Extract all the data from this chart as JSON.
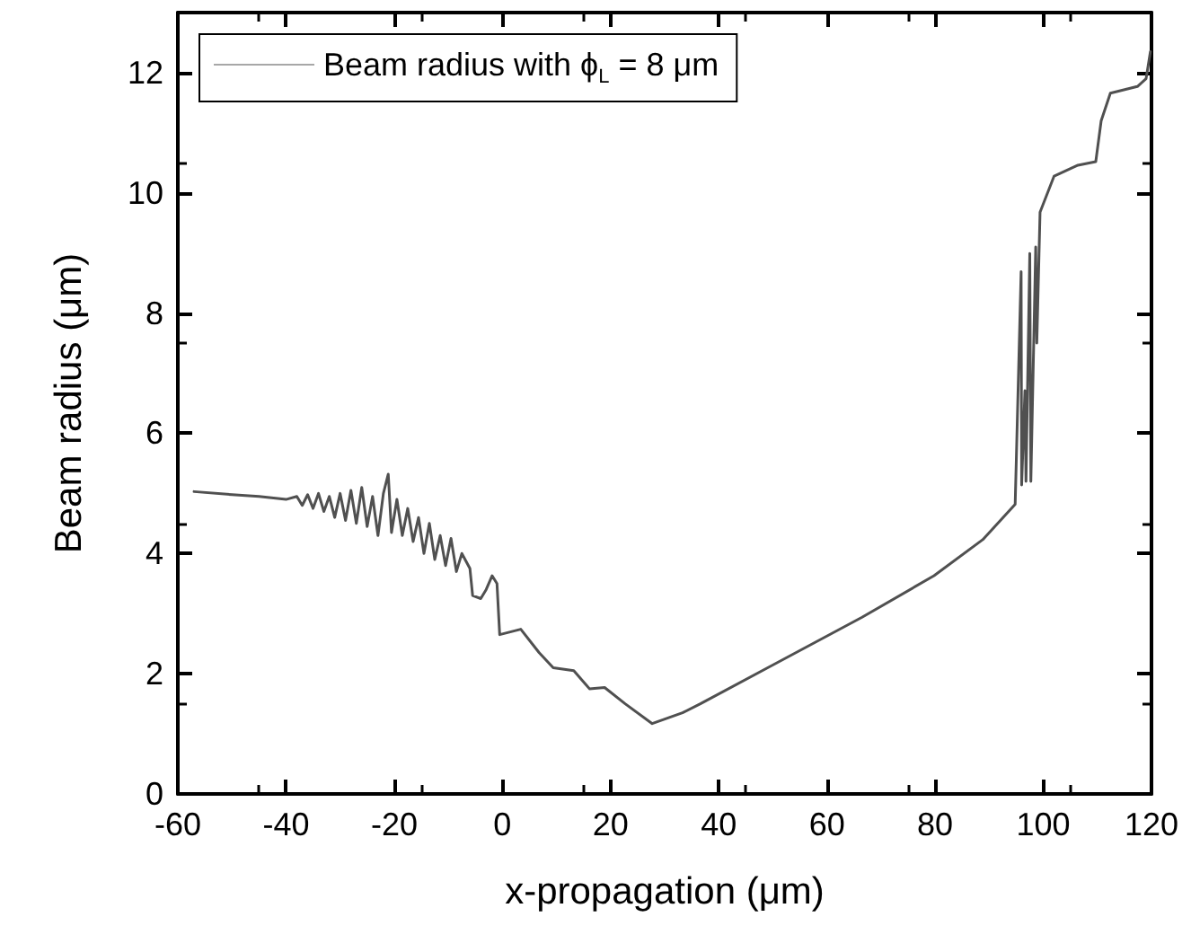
{
  "chart_data": {
    "type": "line",
    "xlabel": "x-propagation (μm)",
    "ylabel": "Beam radius (μm)",
    "xlim": [
      -60,
      120
    ],
    "xticks": [
      -60,
      -40,
      -20,
      0,
      20,
      40,
      60,
      80,
      100,
      120
    ],
    "ylim": [
      0,
      13
    ],
    "yticks": [
      0,
      2,
      4,
      6,
      8,
      10,
      12
    ],
    "grid": false,
    "legend": "top left",
    "marker": "none",
    "line_style": "solid",
    "series": [
      {
        "name": "Beam radius with ϕ$_{L}$ = 8 μm",
        "color": "#505050",
        "x": [
          -57,
          -50,
          -45,
          -40,
          -38,
          -37,
          -36,
          -35,
          -34,
          -33,
          -32,
          -31,
          -30,
          -29,
          -28,
          -27,
          -26,
          -25,
          -24,
          -23,
          -22,
          -21.1,
          -20.5,
          -19.5,
          -18.5,
          -17.5,
          -16.5,
          -15.5,
          -14.5,
          -13.5,
          -12.5,
          -11.5,
          -10.5,
          -9.5,
          -8.5,
          -7.5,
          -6,
          -5.5,
          -4,
          -3,
          -1.9,
          -1,
          -0.5,
          3.4,
          6.8,
          9.4,
          13.2,
          16.1,
          18.9,
          22.7,
          27.7,
          33.3,
          36.6,
          49.9,
          66.5,
          79.8,
          88.8,
          94.8,
          95.9,
          96,
          96.6,
          96.8,
          97.5,
          97.7,
          98.6,
          98.8,
          99.4,
          102,
          106.4,
          109.7,
          110.7,
          112.4,
          117.4,
          119,
          119.8
        ],
        "values": [
          5.03,
          4.98,
          4.95,
          4.9,
          4.95,
          4.8,
          4.98,
          4.75,
          5.0,
          4.7,
          4.95,
          4.6,
          5.0,
          4.55,
          5.05,
          4.5,
          5.1,
          4.45,
          4.95,
          4.3,
          5.0,
          5.32,
          4.35,
          4.9,
          4.3,
          4.75,
          4.2,
          4.6,
          4.0,
          4.5,
          3.9,
          4.3,
          3.8,
          4.25,
          3.7,
          4.0,
          3.75,
          3.3,
          3.25,
          3.4,
          3.63,
          3.5,
          2.65,
          2.74,
          2.35,
          2.1,
          2.05,
          1.75,
          1.77,
          1.5,
          1.17,
          1.35,
          1.5,
          2.14,
          2.94,
          3.63,
          4.23,
          4.82,
          8.69,
          5.14,
          6.71,
          5.2,
          8.99,
          5.2,
          9.1,
          7.5,
          9.68,
          10.28,
          10.46,
          10.52,
          11.2,
          11.66,
          11.77,
          11.9,
          12.35
        ]
      }
    ]
  }
}
